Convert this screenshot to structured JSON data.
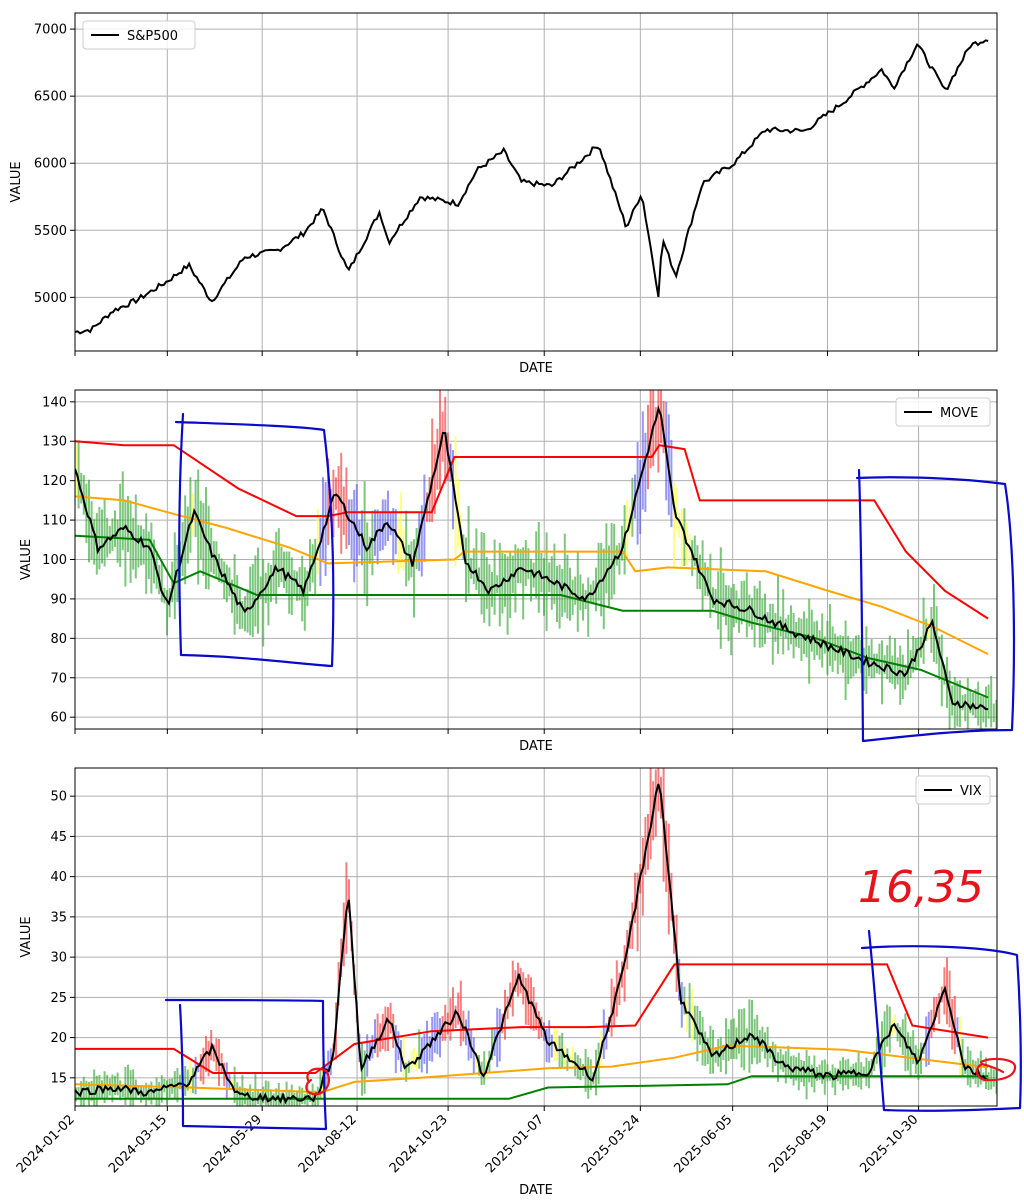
{
  "chart_data": [
    {
      "type": "line",
      "xlabel": "DATE",
      "ylabel": "VALUE",
      "ylim": [
        4600,
        7120
      ],
      "yticks": [
        5000,
        5500,
        6000,
        6500,
        7000
      ],
      "grid": true,
      "legend_position": "top-left",
      "series": [
        {
          "name": "S&P500",
          "color": "#000000",
          "points": [
            {
              "x": "2024-01-02",
              "y": 4742
            },
            {
              "x": "2024-01-15",
              "y": 4760
            },
            {
              "x": "2024-02-01",
              "y": 4900
            },
            {
              "x": "2024-02-20",
              "y": 4980
            },
            {
              "x": "2024-03-15",
              "y": 5120
            },
            {
              "x": "2024-04-01",
              "y": 5240
            },
            {
              "x": "2024-04-19",
              "y": 4970
            },
            {
              "x": "2024-05-15",
              "y": 5300
            },
            {
              "x": "2024-06-10",
              "y": 5350
            },
            {
              "x": "2024-07-01",
              "y": 5480
            },
            {
              "x": "2024-07-16",
              "y": 5660
            },
            {
              "x": "2024-08-05",
              "y": 5190
            },
            {
              "x": "2024-08-30",
              "y": 5640
            },
            {
              "x": "2024-09-06",
              "y": 5410
            },
            {
              "x": "2024-10-01",
              "y": 5750
            },
            {
              "x": "2024-10-31",
              "y": 5700
            },
            {
              "x": "2024-11-15",
              "y": 5950
            },
            {
              "x": "2024-12-06",
              "y": 6090
            },
            {
              "x": "2024-12-20",
              "y": 5860
            },
            {
              "x": "2025-01-13",
              "y": 5830
            },
            {
              "x": "2025-02-19",
              "y": 6140
            },
            {
              "x": "2025-03-13",
              "y": 5520
            },
            {
              "x": "2025-03-25",
              "y": 5780
            },
            {
              "x": "2025-04-08",
              "y": 4980
            },
            {
              "x": "2025-04-10",
              "y": 5450
            },
            {
              "x": "2025-04-21",
              "y": 5160
            },
            {
              "x": "2025-05-12",
              "y": 5850
            },
            {
              "x": "2025-06-06",
              "y": 6000
            },
            {
              "x": "2025-07-01",
              "y": 6250
            },
            {
              "x": "2025-08-01",
              "y": 6240
            },
            {
              "x": "2025-09-01",
              "y": 6460
            },
            {
              "x": "2025-10-01",
              "y": 6700
            },
            {
              "x": "2025-10-10",
              "y": 6560
            },
            {
              "x": "2025-10-29",
              "y": 6890
            },
            {
              "x": "2025-11-20",
              "y": 6540
            },
            {
              "x": "2025-12-10",
              "y": 6880
            },
            {
              "x": "2025-12-24",
              "y": 6930
            }
          ]
        }
      ]
    },
    {
      "type": "line",
      "xlabel": "DATE",
      "ylabel": "VALUE",
      "ylim": [
        57,
        143
      ],
      "yticks": [
        60,
        70,
        80,
        90,
        100,
        110,
        120,
        130,
        140
      ],
      "grid": true,
      "legend_position": "top-right",
      "series": [
        {
          "name": "MOVE",
          "color": "#000000",
          "points": [
            {
              "x": "2024-01-02",
              "y": 123
            },
            {
              "x": "2024-01-20",
              "y": 103
            },
            {
              "x": "2024-02-10",
              "y": 108
            },
            {
              "x": "2024-03-01",
              "y": 103
            },
            {
              "x": "2024-03-15",
              "y": 88
            },
            {
              "x": "2024-04-05",
              "y": 112
            },
            {
              "x": "2024-04-20",
              "y": 101
            },
            {
              "x": "2024-05-15",
              "y": 86
            },
            {
              "x": "2024-06-10",
              "y": 98
            },
            {
              "x": "2024-07-01",
              "y": 92
            },
            {
              "x": "2024-07-26",
              "y": 117
            },
            {
              "x": "2024-08-20",
              "y": 103
            },
            {
              "x": "2024-09-05",
              "y": 110
            },
            {
              "x": "2024-09-25",
              "y": 99
            },
            {
              "x": "2024-10-20",
              "y": 133
            },
            {
              "x": "2024-11-05",
              "y": 100
            },
            {
              "x": "2024-11-25",
              "y": 92
            },
            {
              "x": "2024-12-20",
              "y": 98
            },
            {
              "x": "2025-01-10",
              "y": 95
            },
            {
              "x": "2025-02-10",
              "y": 90
            },
            {
              "x": "2025-03-10",
              "y": 103
            },
            {
              "x": "2025-04-08",
              "y": 139
            },
            {
              "x": "2025-04-20",
              "y": 112
            },
            {
              "x": "2025-05-20",
              "y": 90
            },
            {
              "x": "2025-06-20",
              "y": 87
            },
            {
              "x": "2025-07-20",
              "y": 82
            },
            {
              "x": "2025-08-20",
              "y": 78
            },
            {
              "x": "2025-09-20",
              "y": 74
            },
            {
              "x": "2025-10-20",
              "y": 71
            },
            {
              "x": "2025-11-10",
              "y": 84
            },
            {
              "x": "2025-11-25",
              "y": 64
            },
            {
              "x": "2025-12-24",
              "y": 62
            }
          ]
        },
        {
          "color": "#ff0000",
          "points": [
            {
              "x": "2024-01-02",
              "y": 130
            },
            {
              "x": "2024-02-10",
              "y": 129
            },
            {
              "x": "2024-03-20",
              "y": 129
            },
            {
              "x": "2024-05-10",
              "y": 118
            },
            {
              "x": "2024-06-25",
              "y": 111
            },
            {
              "x": "2024-07-20",
              "y": 111
            },
            {
              "x": "2024-08-05",
              "y": 112
            },
            {
              "x": "2024-10-10",
              "y": 112
            },
            {
              "x": "2024-10-28",
              "y": 126
            },
            {
              "x": "2025-04-02",
              "y": 126
            },
            {
              "x": "2025-04-08",
              "y": 129
            },
            {
              "x": "2025-04-28",
              "y": 128
            },
            {
              "x": "2025-05-10",
              "y": 115
            },
            {
              "x": "2025-09-25",
              "y": 115
            },
            {
              "x": "2025-10-20",
              "y": 102
            },
            {
              "x": "2025-11-20",
              "y": 92
            },
            {
              "x": "2025-12-24",
              "y": 85
            }
          ]
        },
        {
          "color": "#ffa500",
          "points": [
            {
              "x": "2024-01-02",
              "y": 116
            },
            {
              "x": "2024-02-10",
              "y": 115
            },
            {
              "x": "2024-03-15",
              "y": 112
            },
            {
              "x": "2024-05-01",
              "y": 108
            },
            {
              "x": "2024-06-20",
              "y": 103
            },
            {
              "x": "2024-07-20",
              "y": 99
            },
            {
              "x": "2024-10-28",
              "y": 100
            },
            {
              "x": "2024-11-05",
              "y": 102
            },
            {
              "x": "2025-03-10",
              "y": 102
            },
            {
              "x": "2025-03-20",
              "y": 97
            },
            {
              "x": "2025-04-15",
              "y": 98
            },
            {
              "x": "2025-07-01",
              "y": 97
            },
            {
              "x": "2025-08-20",
              "y": 92
            },
            {
              "x": "2025-10-01",
              "y": 88
            },
            {
              "x": "2025-11-10",
              "y": 83
            },
            {
              "x": "2025-12-24",
              "y": 76
            }
          ]
        },
        {
          "color": "#008000",
          "points": [
            {
              "x": "2024-01-02",
              "y": 106
            },
            {
              "x": "2024-03-01",
              "y": 105
            },
            {
              "x": "2024-03-20",
              "y": 94
            },
            {
              "x": "2024-04-10",
              "y": 97
            },
            {
              "x": "2024-05-25",
              "y": 91
            },
            {
              "x": "2024-10-28",
              "y": 91
            },
            {
              "x": "2025-01-20",
              "y": 91
            },
            {
              "x": "2025-03-10",
              "y": 87
            },
            {
              "x": "2025-05-20",
              "y": 87
            },
            {
              "x": "2025-06-20",
              "y": 84
            },
            {
              "x": "2025-08-10",
              "y": 80
            },
            {
              "x": "2025-09-20",
              "y": 75
            },
            {
              "x": "2025-11-01",
              "y": 72
            },
            {
              "x": "2025-12-24",
              "y": 65
            }
          ]
        }
      ]
    },
    {
      "type": "line",
      "xlabel": "DATE",
      "ylabel": "VALUE",
      "ylim": [
        11.5,
        53.5
      ],
      "yticks": [
        15,
        20,
        25,
        30,
        35,
        40,
        45,
        50
      ],
      "xticks": [
        "2024-01-02",
        "2024-03-15",
        "2024-05-29",
        "2024-08-12",
        "2024-10-23",
        "2025-01-07",
        "2025-03-24",
        "2025-06-05",
        "2025-08-19",
        "2025-10-30"
      ],
      "grid": true,
      "legend_position": "top-right",
      "series": [
        {
          "name": "VIX",
          "color": "#000000",
          "points": [
            {
              "x": "2024-01-02",
              "y": 13.2
            },
            {
              "x": "2024-02-01",
              "y": 13.8
            },
            {
              "x": "2024-03-01",
              "y": 13.1
            },
            {
              "x": "2024-04-01",
              "y": 14.5
            },
            {
              "x": "2024-04-19",
              "y": 18.7
            },
            {
              "x": "2024-05-10",
              "y": 12.8
            },
            {
              "x": "2024-06-15",
              "y": 12.4
            },
            {
              "x": "2024-07-10",
              "y": 12.5
            },
            {
              "x": "2024-07-24",
              "y": 17.5
            },
            {
              "x": "2024-08-05",
              "y": 38.6
            },
            {
              "x": "2024-08-15",
              "y": 16
            },
            {
              "x": "2024-09-06",
              "y": 22.4
            },
            {
              "x": "2024-09-20",
              "y": 16
            },
            {
              "x": "2024-10-31",
              "y": 23.2
            },
            {
              "x": "2024-11-20",
              "y": 15.3
            },
            {
              "x": "2024-12-18",
              "y": 27.6
            },
            {
              "x": "2025-01-10",
              "y": 19.5
            },
            {
              "x": "2025-02-15",
              "y": 15
            },
            {
              "x": "2025-03-10",
              "y": 27.9
            },
            {
              "x": "2025-04-08",
              "y": 52.3
            },
            {
              "x": "2025-04-25",
              "y": 24.8
            },
            {
              "x": "2025-05-20",
              "y": 17.5
            },
            {
              "x": "2025-06-20",
              "y": 20.5
            },
            {
              "x": "2025-07-15",
              "y": 16.5
            },
            {
              "x": "2025-08-20",
              "y": 15.2
            },
            {
              "x": "2025-09-20",
              "y": 15.8
            },
            {
              "x": "2025-10-10",
              "y": 21.6
            },
            {
              "x": "2025-10-30",
              "y": 16.9
            },
            {
              "x": "2025-11-20",
              "y": 26.3
            },
            {
              "x": "2025-12-05",
              "y": 16.5
            },
            {
              "x": "2025-12-24",
              "y": 14.8
            }
          ]
        },
        {
          "color": "#ff0000",
          "points": [
            {
              "x": "2024-01-02",
              "y": 18.6
            },
            {
              "x": "2024-03-20",
              "y": 18.6
            },
            {
              "x": "2024-04-20",
              "y": 15.6
            },
            {
              "x": "2024-07-10",
              "y": 15.6
            },
            {
              "x": "2024-08-10",
              "y": 19.2
            },
            {
              "x": "2024-10-10",
              "y": 20.8
            },
            {
              "x": "2024-12-20",
              "y": 21.3
            },
            {
              "x": "2025-02-10",
              "y": 21.3
            },
            {
              "x": "2025-03-20",
              "y": 21.5
            },
            {
              "x": "2025-04-20",
              "y": 29.1
            },
            {
              "x": "2025-10-05",
              "y": 29.1
            },
            {
              "x": "2025-10-25",
              "y": 21.5
            },
            {
              "x": "2025-12-24",
              "y": 20
            }
          ]
        },
        {
          "color": "#ffa500",
          "points": [
            {
              "x": "2024-01-02",
              "y": 14.2
            },
            {
              "x": "2024-04-01",
              "y": 13.8
            },
            {
              "x": "2024-07-15",
              "y": 13.2
            },
            {
              "x": "2024-08-10",
              "y": 14.5
            },
            {
              "x": "2024-10-01",
              "y": 15
            },
            {
              "x": "2025-01-10",
              "y": 16.2
            },
            {
              "x": "2025-03-01",
              "y": 16.4
            },
            {
              "x": "2025-04-20",
              "y": 17.5
            },
            {
              "x": "2025-06-01",
              "y": 19
            },
            {
              "x": "2025-09-01",
              "y": 18.5
            },
            {
              "x": "2025-12-24",
              "y": 16.3
            }
          ]
        },
        {
          "color": "#008000",
          "points": [
            {
              "x": "2024-01-02",
              "y": 12.4
            },
            {
              "x": "2024-07-10",
              "y": 12.4
            },
            {
              "x": "2024-12-10",
              "y": 12.4
            },
            {
              "x": "2025-01-10",
              "y": 13.8
            },
            {
              "x": "2025-06-01",
              "y": 14.2
            },
            {
              "x": "2025-06-20",
              "y": 15.2
            },
            {
              "x": "2025-12-24",
              "y": 15.2
            }
          ]
        }
      ]
    }
  ],
  "annotations": {
    "handwritten_value": "16,35",
    "ink_blue": "#0a0acc",
    "ink_red": "#e8141b"
  }
}
